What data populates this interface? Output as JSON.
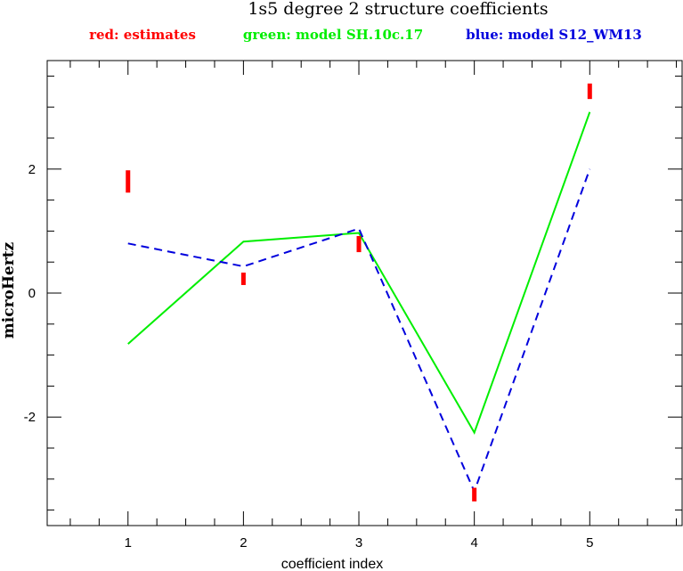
{
  "chart_data": {
    "type": "line",
    "title": "1s5 degree 2 structure coefficients",
    "xlabel": "coefficient index",
    "ylabel": "microHertz",
    "x": [
      1,
      2,
      3,
      4,
      5
    ],
    "xlim": [
      0.3,
      5.8
    ],
    "ylim": [
      -3.75,
      3.75
    ],
    "x_ticks": [
      1,
      2,
      3,
      4,
      5
    ],
    "x_tick_labels": [
      "1",
      "2",
      "3",
      "4",
      "5"
    ],
    "y_ticks": [
      -2,
      0,
      2
    ],
    "y_tick_labels": [
      "-2",
      "0",
      "2"
    ],
    "grid": false,
    "legend": [
      {
        "text": "red: estimates",
        "color": "#ff0000"
      },
      {
        "text": "green: model SH.10c.17",
        "color": "#00ee00"
      },
      {
        "text": "blue: model S12_WM13",
        "color": "#0000dd"
      }
    ],
    "estimates": {
      "color": "#ff0000",
      "intervals": [
        {
          "x": 1,
          "low": 1.62,
          "high": 1.98
        },
        {
          "x": 2,
          "low": 0.13,
          "high": 0.33
        },
        {
          "x": 3,
          "low": 0.66,
          "high": 0.92
        },
        {
          "x": 4,
          "low": -3.36,
          "high": -3.14
        },
        {
          "x": 5,
          "low": 3.13,
          "high": 3.38
        }
      ]
    },
    "series": [
      {
        "values": [
          -0.82,
          0.83,
          0.97,
          -2.25,
          2.92
        ],
        "color": "#00ee00",
        "style": "solid"
      },
      {
        "values": [
          0.8,
          0.43,
          1.04,
          -3.2,
          2.0
        ],
        "color": "#0000dd",
        "style": "dashed"
      }
    ]
  }
}
